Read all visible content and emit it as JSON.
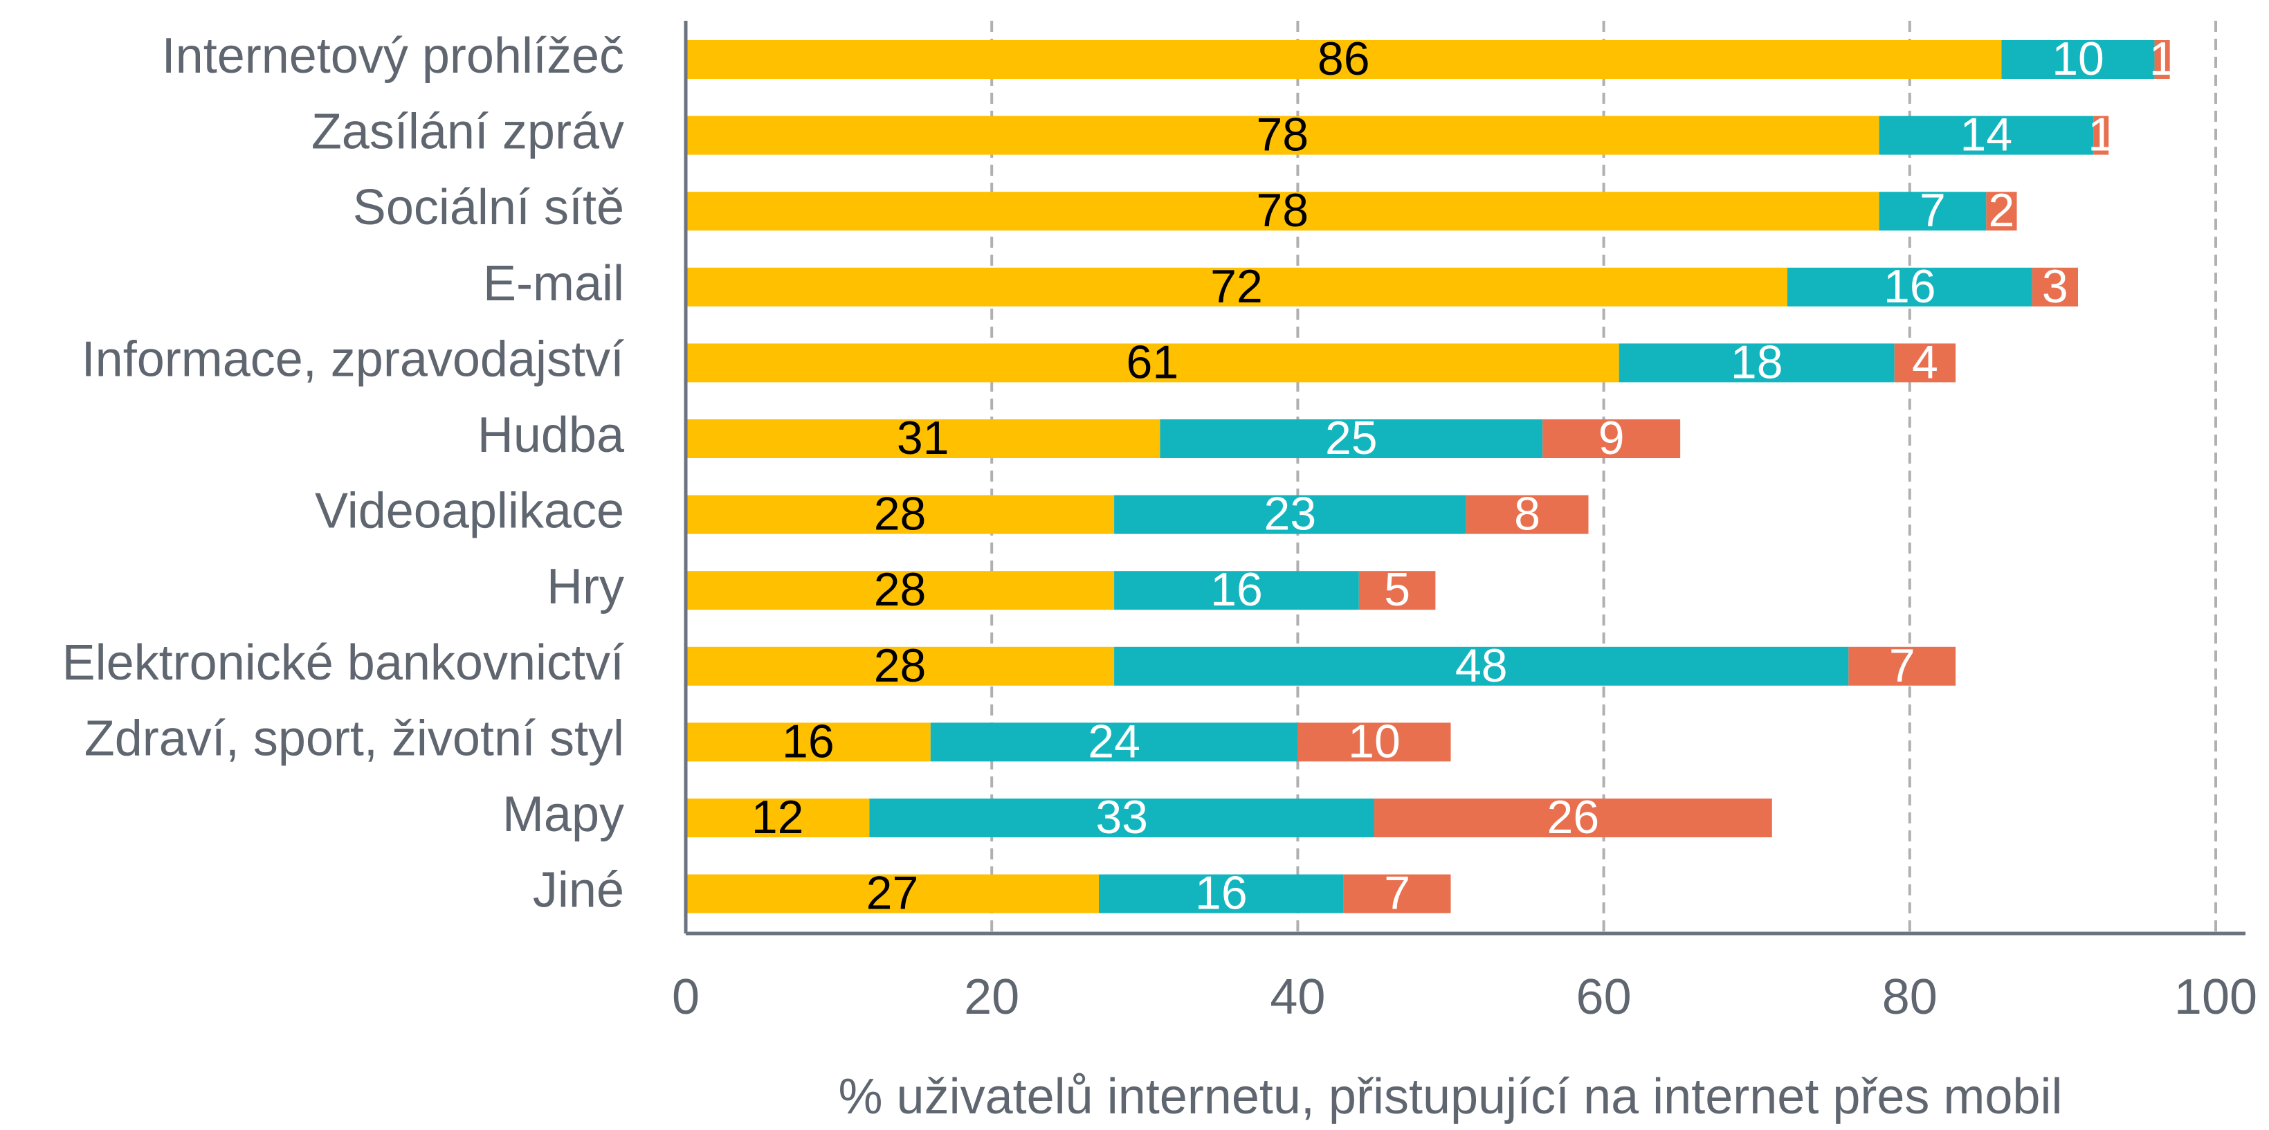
{
  "chart_data": {
    "type": "stacked_barh",
    "categories": [
      "Internetový prohlížeč",
      "Zasílání zpráv",
      "Sociální sítě",
      "E-mail",
      "Informace, zpravodajství",
      "Hudba",
      "Videoaplikace",
      "Hry",
      "Elektronické bankovnictví",
      "Zdraví, sport, životní styl",
      "Mapy",
      "Jiné"
    ],
    "series": [
      {
        "color": "#FFC000",
        "label_color": "#000000",
        "values": [
          86,
          78,
          78,
          72,
          61,
          31,
          28,
          28,
          28,
          16,
          12,
          27
        ]
      },
      {
        "color": "#12B5BD",
        "label_color": "#ffffff",
        "values": [
          10,
          14,
          7,
          16,
          18,
          25,
          23,
          16,
          48,
          24,
          33,
          16
        ]
      },
      {
        "color": "#E8704F",
        "label_color": "#ffffff",
        "values": [
          1,
          1,
          2,
          3,
          4,
          9,
          8,
          5,
          7,
          10,
          26,
          7
        ]
      }
    ],
    "xlabel": "% uživatelů internetu, přistupující na internet přes mobil",
    "xlim": [
      0,
      100
    ],
    "xticks": [
      0,
      20,
      40,
      60,
      80,
      100
    ],
    "grid": true
  }
}
